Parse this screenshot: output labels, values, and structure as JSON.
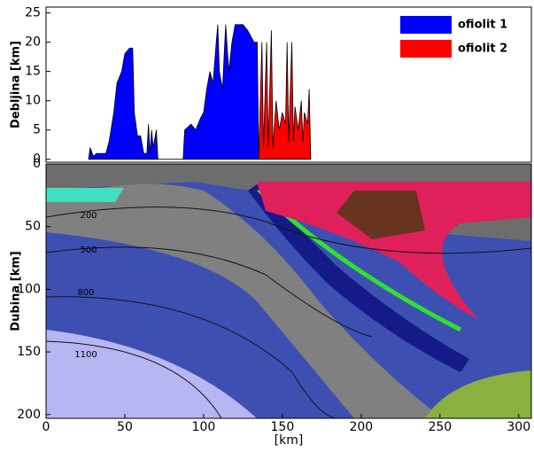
{
  "chart_data": [
    {
      "type": "area",
      "ylabel": "Debljina [km]",
      "xlim": [
        0,
        308
      ],
      "ylim": [
        -0.5,
        26
      ],
      "yticks": [
        0,
        5,
        10,
        15,
        20,
        25
      ],
      "legend": "top-right",
      "series": [
        {
          "name": "ofiolit 1",
          "color": "#0000ff",
          "x": [
            27,
            28,
            30,
            32,
            35,
            38,
            40,
            43,
            45,
            48,
            50,
            53,
            55,
            56,
            58,
            60,
            62,
            64,
            65,
            66,
            67,
            68,
            70,
            71,
            87,
            88,
            92,
            95,
            98,
            100,
            102,
            104,
            106,
            108,
            109,
            110,
            112,
            114,
            116,
            118,
            120,
            125,
            128,
            130,
            132,
            134,
            135
          ],
          "values": [
            0,
            2,
            0.5,
            1,
            1,
            1,
            3,
            8,
            13,
            15,
            18,
            19,
            19,
            8,
            4,
            4,
            1,
            1,
            6,
            1,
            5,
            2,
            5,
            0,
            0,
            5,
            6,
            5,
            7,
            8,
            12,
            15,
            13,
            20,
            23,
            15,
            12,
            23,
            15,
            20,
            23,
            23,
            22,
            21,
            20,
            20,
            0
          ]
        },
        {
          "name": "ofiolit 2",
          "color": "#ff0000",
          "x": [
            135,
            137,
            138,
            140,
            141,
            143,
            144,
            146,
            148,
            150,
            152,
            153,
            154,
            156,
            157,
            158,
            160,
            162,
            163,
            164,
            166,
            167,
            168
          ],
          "values": [
            0,
            20,
            2,
            20,
            2,
            22,
            2,
            10,
            5,
            8,
            6,
            20,
            3,
            20,
            3,
            9,
            5,
            10,
            3,
            8,
            6,
            12,
            0
          ]
        }
      ]
    },
    {
      "type": "image",
      "xlabel": "[km]",
      "ylabel": "Dubina [km]",
      "xlim": [
        0,
        308
      ],
      "ylim": [
        0,
        203
      ],
      "xticks": [
        0,
        50,
        100,
        150,
        200,
        250,
        300
      ],
      "yticks": [
        0,
        50,
        100,
        150,
        200
      ],
      "isotherm_labels": [
        200,
        500,
        800,
        1100
      ]
    }
  ]
}
